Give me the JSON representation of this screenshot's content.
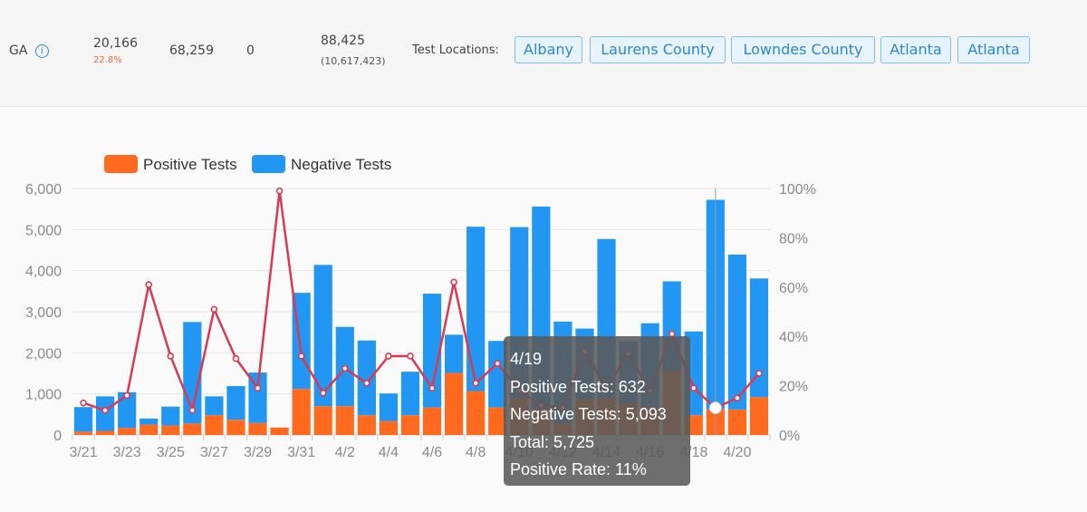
{
  "header": {
    "state": "GA",
    "positive": "20,166",
    "positive_rate": "22.8%",
    "negative": "68,259",
    "pending": "0",
    "total": "88,425",
    "total_sub": "(10,617,423)",
    "locations_label": "Test Locations:",
    "locations": [
      "Albany",
      "Laurens County",
      "Lowndes County",
      "Atlanta",
      "Atlanta"
    ]
  },
  "legend": {
    "positive": "Positive Tests",
    "negative": "Negative Tests"
  },
  "colors": {
    "positive": "#ff6a1f",
    "negative": "#2196f3",
    "rate_line": "#d93a52",
    "accent": "#2a87d0"
  },
  "tooltip": {
    "date": "4/19",
    "positive": "Positive Tests: 632",
    "negative": "Negative Tests: 5,093",
    "total": "Total: 5,725",
    "rate": "Positive Rate: 11%"
  },
  "chart_data": {
    "type": "bar",
    "stacked": true,
    "categories": [
      "3/21",
      "3/22",
      "3/23",
      "3/24",
      "3/25",
      "3/26",
      "3/27",
      "3/28",
      "3/29",
      "3/30",
      "3/31",
      "4/1",
      "4/2",
      "4/3",
      "4/4",
      "4/5",
      "4/6",
      "4/7",
      "4/8",
      "4/9",
      "4/10",
      "4/11",
      "4/12",
      "4/13",
      "4/14",
      "4/15",
      "4/16",
      "4/17",
      "4/18",
      "4/19",
      "4/20",
      "4/21"
    ],
    "x_tick_labels": [
      "3/21",
      "3/23",
      "3/25",
      "3/27",
      "3/29",
      "3/31",
      "4/2",
      "4/4",
      "4/6",
      "4/8",
      "4/10",
      "4/12",
      "4/14",
      "4/16",
      "4/18",
      "4/20"
    ],
    "series": [
      {
        "name": "Positive Tests",
        "values": [
          80,
          100,
          170,
          250,
          230,
          280,
          480,
          370,
          290,
          180,
          1120,
          700,
          700,
          480,
          340,
          480,
          670,
          1510,
          1070,
          670,
          890,
          640,
          290,
          870,
          900,
          750,
          680,
          1560,
          480,
          632,
          620,
          920
        ]
      },
      {
        "name": "Negative Tests",
        "values": [
          600,
          840,
          870,
          150,
          460,
          2470,
          460,
          820,
          1230,
          0,
          2340,
          3440,
          1930,
          1820,
          670,
          1060,
          2770,
          930,
          4000,
          1620,
          4170,
          4920,
          2470,
          1720,
          3870,
          1530,
          2040,
          2180,
          2040,
          5093,
          3770,
          2890
        ]
      }
    ],
    "rate_series": {
      "values": [
        0.13,
        0.1,
        0.16,
        0.61,
        0.32,
        0.1,
        0.51,
        0.31,
        0.19,
        0.99,
        0.32,
        0.17,
        0.27,
        0.21,
        0.32,
        0.32,
        0.19,
        0.62,
        0.21,
        0.29,
        0.18,
        0.12,
        0.11,
        0.34,
        0.19,
        0.33,
        0.18,
        0.41,
        0.19,
        0.11,
        0.15,
        0.25
      ]
    },
    "ylim": [
      0,
      6000
    ],
    "y_ticks": [
      "0",
      "1,000",
      "2,000",
      "3,000",
      "4,000",
      "5,000",
      "6,000"
    ],
    "y2lim": [
      0,
      1
    ],
    "y2_ticks": [
      "0%",
      "20%",
      "40%",
      "60%",
      "80%",
      "100%"
    ],
    "highlight_index": 29,
    "legend_position": "top-left",
    "grid": true
  }
}
